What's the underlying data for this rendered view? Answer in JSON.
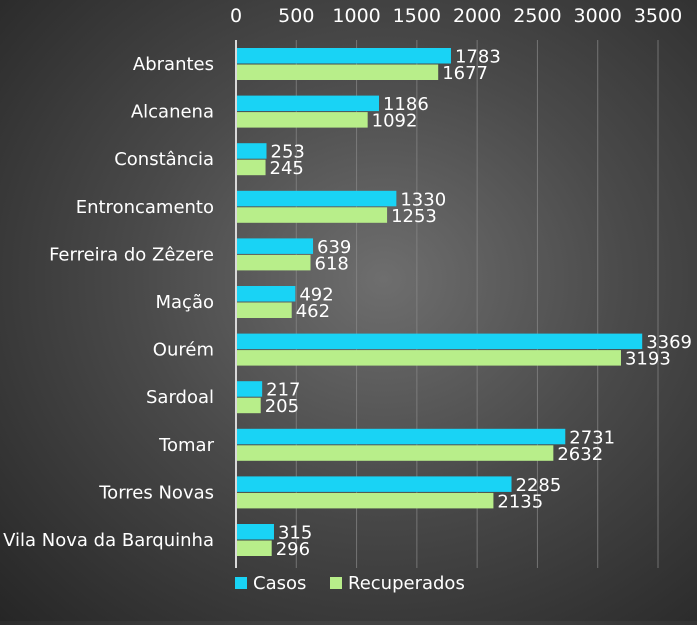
{
  "chart_data": {
    "type": "bar",
    "orientation": "horizontal",
    "categories": [
      "Abrantes",
      "Alcanena",
      "Constância",
      "Entroncamento",
      "Ferreira do Zêzere",
      "Mação",
      "Ourém",
      "Sardoal",
      "Tomar",
      "Torres Novas",
      "Vila Nova da Barquinha"
    ],
    "series": [
      {
        "name": "Casos",
        "color": "#19d3f5",
        "values": [
          1783,
          1186,
          253,
          1330,
          639,
          492,
          3369,
          217,
          2731,
          2285,
          315
        ]
      },
      {
        "name": "Recuperados",
        "color": "#b8ee8a",
        "values": [
          1677,
          1092,
          245,
          1253,
          618,
          462,
          3193,
          205,
          2632,
          2135,
          296
        ]
      }
    ],
    "xticks": [
      "0",
      "500",
      "1000",
      "1500",
      "2000",
      "2500",
      "3000",
      "3500"
    ],
    "xlim": [
      0,
      3500
    ],
    "axis_position": "top",
    "grid": true,
    "legend_position": "bottom",
    "data_labels": true
  }
}
